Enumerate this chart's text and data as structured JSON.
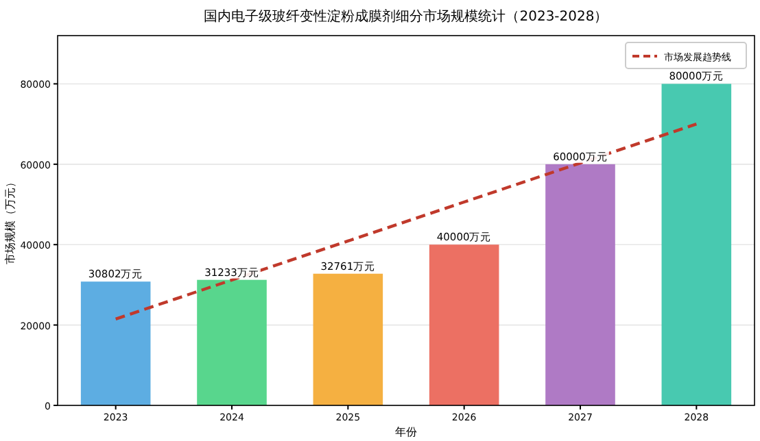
{
  "chart_data": {
    "type": "bar",
    "title": "国内电子级玻纤变性淀粉成膜剂细分市场规模统计（2023-2028）",
    "xlabel": "年份",
    "ylabel": "市场规模（万元）",
    "categories": [
      "2023",
      "2024",
      "2025",
      "2026",
      "2027",
      "2028"
    ],
    "series": [
      {
        "colors": [
          "#5dade2",
          "#58d68d",
          "#f5b041",
          "#ec7063",
          "#af7ac5",
          "#48c9b0"
        ],
        "values": [
          30802,
          31233,
          32761,
          40000,
          60000,
          80000
        ],
        "value_labels": [
          "30802万元",
          "31233万元",
          "32761万元",
          "40000万元",
          "60000万元",
          "80000万元"
        ]
      },
      {
        "type": "line",
        "name": "市场发展趋势线",
        "color": "#c0392b",
        "line_style": "dashed",
        "values": [
          21500,
          31200,
          40900,
          50600,
          60300,
          70000
        ]
      }
    ],
    "ylim": [
      0,
      92000
    ],
    "yticks": [
      0,
      20000,
      40000,
      60000,
      80000
    ],
    "grid": "y",
    "legend": "top right"
  }
}
